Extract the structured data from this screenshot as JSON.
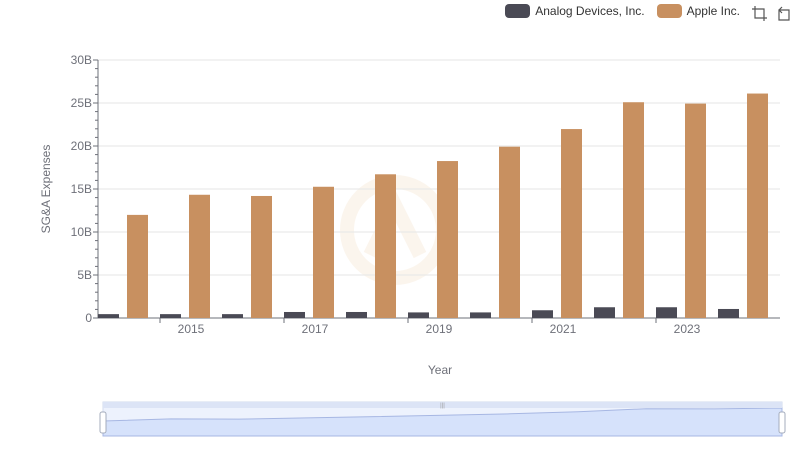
{
  "chart_data": {
    "type": "bar",
    "title": "",
    "xlabel": "Year",
    "ylabel": "SG&A Expenses",
    "ylim": [
      0,
      30
    ],
    "y_unit_suffix": "B",
    "y_ticks": [
      "0",
      "5B",
      "10B",
      "15B",
      "20B",
      "25B",
      "30B"
    ],
    "x_tick_labels": [
      "2015",
      "2017",
      "2019",
      "2021",
      "2023"
    ],
    "categories": [
      "2014",
      "2015",
      "2016",
      "2017",
      "2018",
      "2019",
      "2020",
      "2021",
      "2022",
      "2023",
      "2024"
    ],
    "series": [
      {
        "name": "Analog Devices, Inc.",
        "color": "#4a4a55",
        "values": [
          0.45,
          0.45,
          0.45,
          0.7,
          0.7,
          0.65,
          0.65,
          0.9,
          1.25,
          1.25,
          1.05
        ]
      },
      {
        "name": "Apple Inc.",
        "color": "#c89060",
        "values": [
          11.99,
          14.33,
          14.19,
          15.26,
          16.71,
          18.25,
          19.92,
          21.97,
          25.09,
          24.93,
          26.1
        ]
      }
    ],
    "grid": true,
    "legend_position": "top-right"
  },
  "toolbox": {
    "zoom_icon": "zoom-area-icon",
    "reset_icon": "restore-icon"
  },
  "datazoom": {
    "handle_glyph": "|||",
    "fill_color": "#d6e2fb",
    "line_color": "#a7b7e3"
  }
}
